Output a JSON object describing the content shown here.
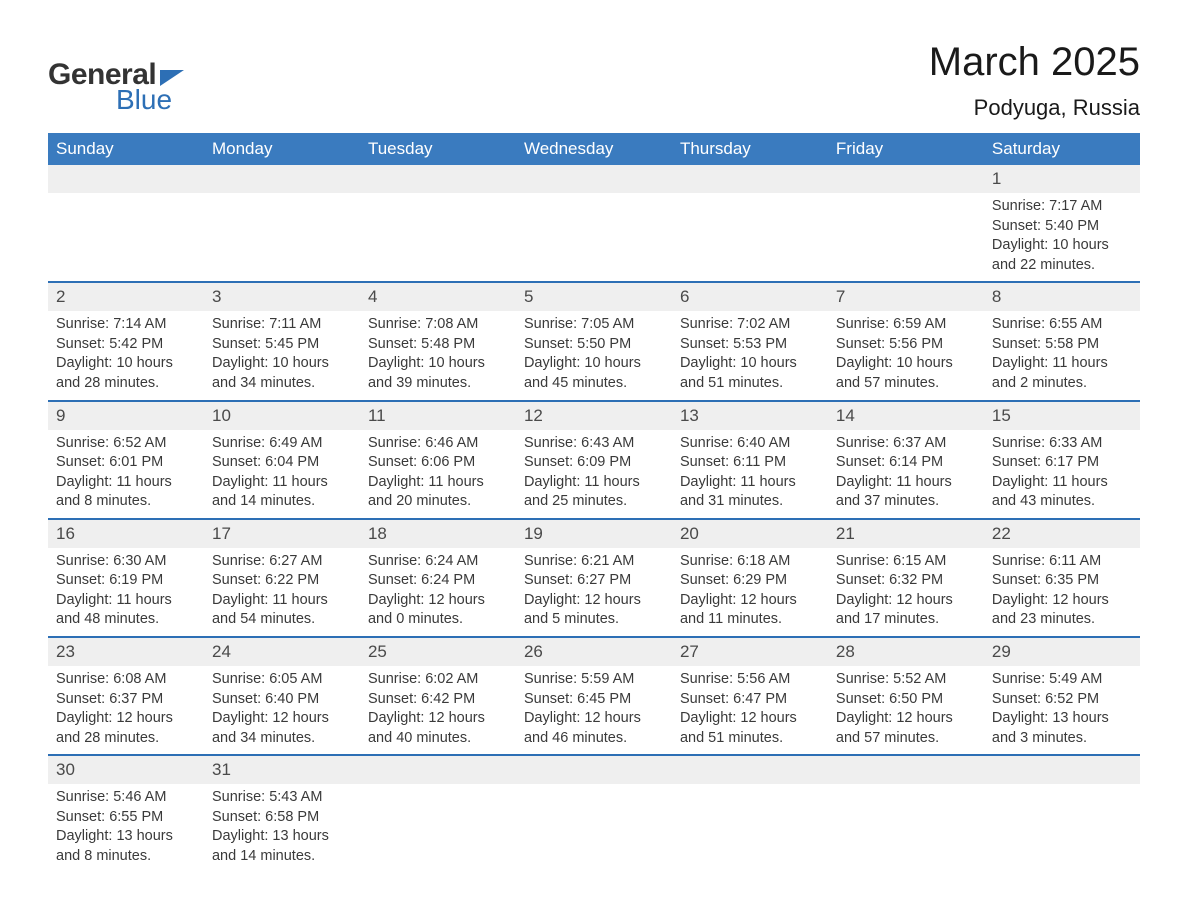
{
  "logo": {
    "text1": "General",
    "text2": "Blue"
  },
  "title": "March 2025",
  "subtitle": "Podyuga, Russia",
  "colors": {
    "header_bg": "#3a7bbf",
    "header_text": "#ffffff",
    "row_border": "#2d6fb5",
    "daynum_bg": "#efefef",
    "body_text": "#3a3a3a",
    "logo_dark": "#333333",
    "logo_blue": "#2d6fb5"
  },
  "day_headers": [
    "Sunday",
    "Monday",
    "Tuesday",
    "Wednesday",
    "Thursday",
    "Friday",
    "Saturday"
  ],
  "weeks": [
    [
      null,
      null,
      null,
      null,
      null,
      null,
      {
        "n": "1",
        "sunrise": "7:17 AM",
        "sunset": "5:40 PM",
        "dl": "10 hours and 22 minutes."
      }
    ],
    [
      {
        "n": "2",
        "sunrise": "7:14 AM",
        "sunset": "5:42 PM",
        "dl": "10 hours and 28 minutes."
      },
      {
        "n": "3",
        "sunrise": "7:11 AM",
        "sunset": "5:45 PM",
        "dl": "10 hours and 34 minutes."
      },
      {
        "n": "4",
        "sunrise": "7:08 AM",
        "sunset": "5:48 PM",
        "dl": "10 hours and 39 minutes."
      },
      {
        "n": "5",
        "sunrise": "7:05 AM",
        "sunset": "5:50 PM",
        "dl": "10 hours and 45 minutes."
      },
      {
        "n": "6",
        "sunrise": "7:02 AM",
        "sunset": "5:53 PM",
        "dl": "10 hours and 51 minutes."
      },
      {
        "n": "7",
        "sunrise": "6:59 AM",
        "sunset": "5:56 PM",
        "dl": "10 hours and 57 minutes."
      },
      {
        "n": "8",
        "sunrise": "6:55 AM",
        "sunset": "5:58 PM",
        "dl": "11 hours and 2 minutes."
      }
    ],
    [
      {
        "n": "9",
        "sunrise": "6:52 AM",
        "sunset": "6:01 PM",
        "dl": "11 hours and 8 minutes."
      },
      {
        "n": "10",
        "sunrise": "6:49 AM",
        "sunset": "6:04 PM",
        "dl": "11 hours and 14 minutes."
      },
      {
        "n": "11",
        "sunrise": "6:46 AM",
        "sunset": "6:06 PM",
        "dl": "11 hours and 20 minutes."
      },
      {
        "n": "12",
        "sunrise": "6:43 AM",
        "sunset": "6:09 PM",
        "dl": "11 hours and 25 minutes."
      },
      {
        "n": "13",
        "sunrise": "6:40 AM",
        "sunset": "6:11 PM",
        "dl": "11 hours and 31 minutes."
      },
      {
        "n": "14",
        "sunrise": "6:37 AM",
        "sunset": "6:14 PM",
        "dl": "11 hours and 37 minutes."
      },
      {
        "n": "15",
        "sunrise": "6:33 AM",
        "sunset": "6:17 PM",
        "dl": "11 hours and 43 minutes."
      }
    ],
    [
      {
        "n": "16",
        "sunrise": "6:30 AM",
        "sunset": "6:19 PM",
        "dl": "11 hours and 48 minutes."
      },
      {
        "n": "17",
        "sunrise": "6:27 AM",
        "sunset": "6:22 PM",
        "dl": "11 hours and 54 minutes."
      },
      {
        "n": "18",
        "sunrise": "6:24 AM",
        "sunset": "6:24 PM",
        "dl": "12 hours and 0 minutes."
      },
      {
        "n": "19",
        "sunrise": "6:21 AM",
        "sunset": "6:27 PM",
        "dl": "12 hours and 5 minutes."
      },
      {
        "n": "20",
        "sunrise": "6:18 AM",
        "sunset": "6:29 PM",
        "dl": "12 hours and 11 minutes."
      },
      {
        "n": "21",
        "sunrise": "6:15 AM",
        "sunset": "6:32 PM",
        "dl": "12 hours and 17 minutes."
      },
      {
        "n": "22",
        "sunrise": "6:11 AM",
        "sunset": "6:35 PM",
        "dl": "12 hours and 23 minutes."
      }
    ],
    [
      {
        "n": "23",
        "sunrise": "6:08 AM",
        "sunset": "6:37 PM",
        "dl": "12 hours and 28 minutes."
      },
      {
        "n": "24",
        "sunrise": "6:05 AM",
        "sunset": "6:40 PM",
        "dl": "12 hours and 34 minutes."
      },
      {
        "n": "25",
        "sunrise": "6:02 AM",
        "sunset": "6:42 PM",
        "dl": "12 hours and 40 minutes."
      },
      {
        "n": "26",
        "sunrise": "5:59 AM",
        "sunset": "6:45 PM",
        "dl": "12 hours and 46 minutes."
      },
      {
        "n": "27",
        "sunrise": "5:56 AM",
        "sunset": "6:47 PM",
        "dl": "12 hours and 51 minutes."
      },
      {
        "n": "28",
        "sunrise": "5:52 AM",
        "sunset": "6:50 PM",
        "dl": "12 hours and 57 minutes."
      },
      {
        "n": "29",
        "sunrise": "5:49 AM",
        "sunset": "6:52 PM",
        "dl": "13 hours and 3 minutes."
      }
    ],
    [
      {
        "n": "30",
        "sunrise": "5:46 AM",
        "sunset": "6:55 PM",
        "dl": "13 hours and 8 minutes."
      },
      {
        "n": "31",
        "sunrise": "5:43 AM",
        "sunset": "6:58 PM",
        "dl": "13 hours and 14 minutes."
      },
      null,
      null,
      null,
      null,
      null
    ]
  ],
  "labels": {
    "sunrise": "Sunrise: ",
    "sunset": "Sunset: ",
    "daylight": "Daylight: "
  }
}
